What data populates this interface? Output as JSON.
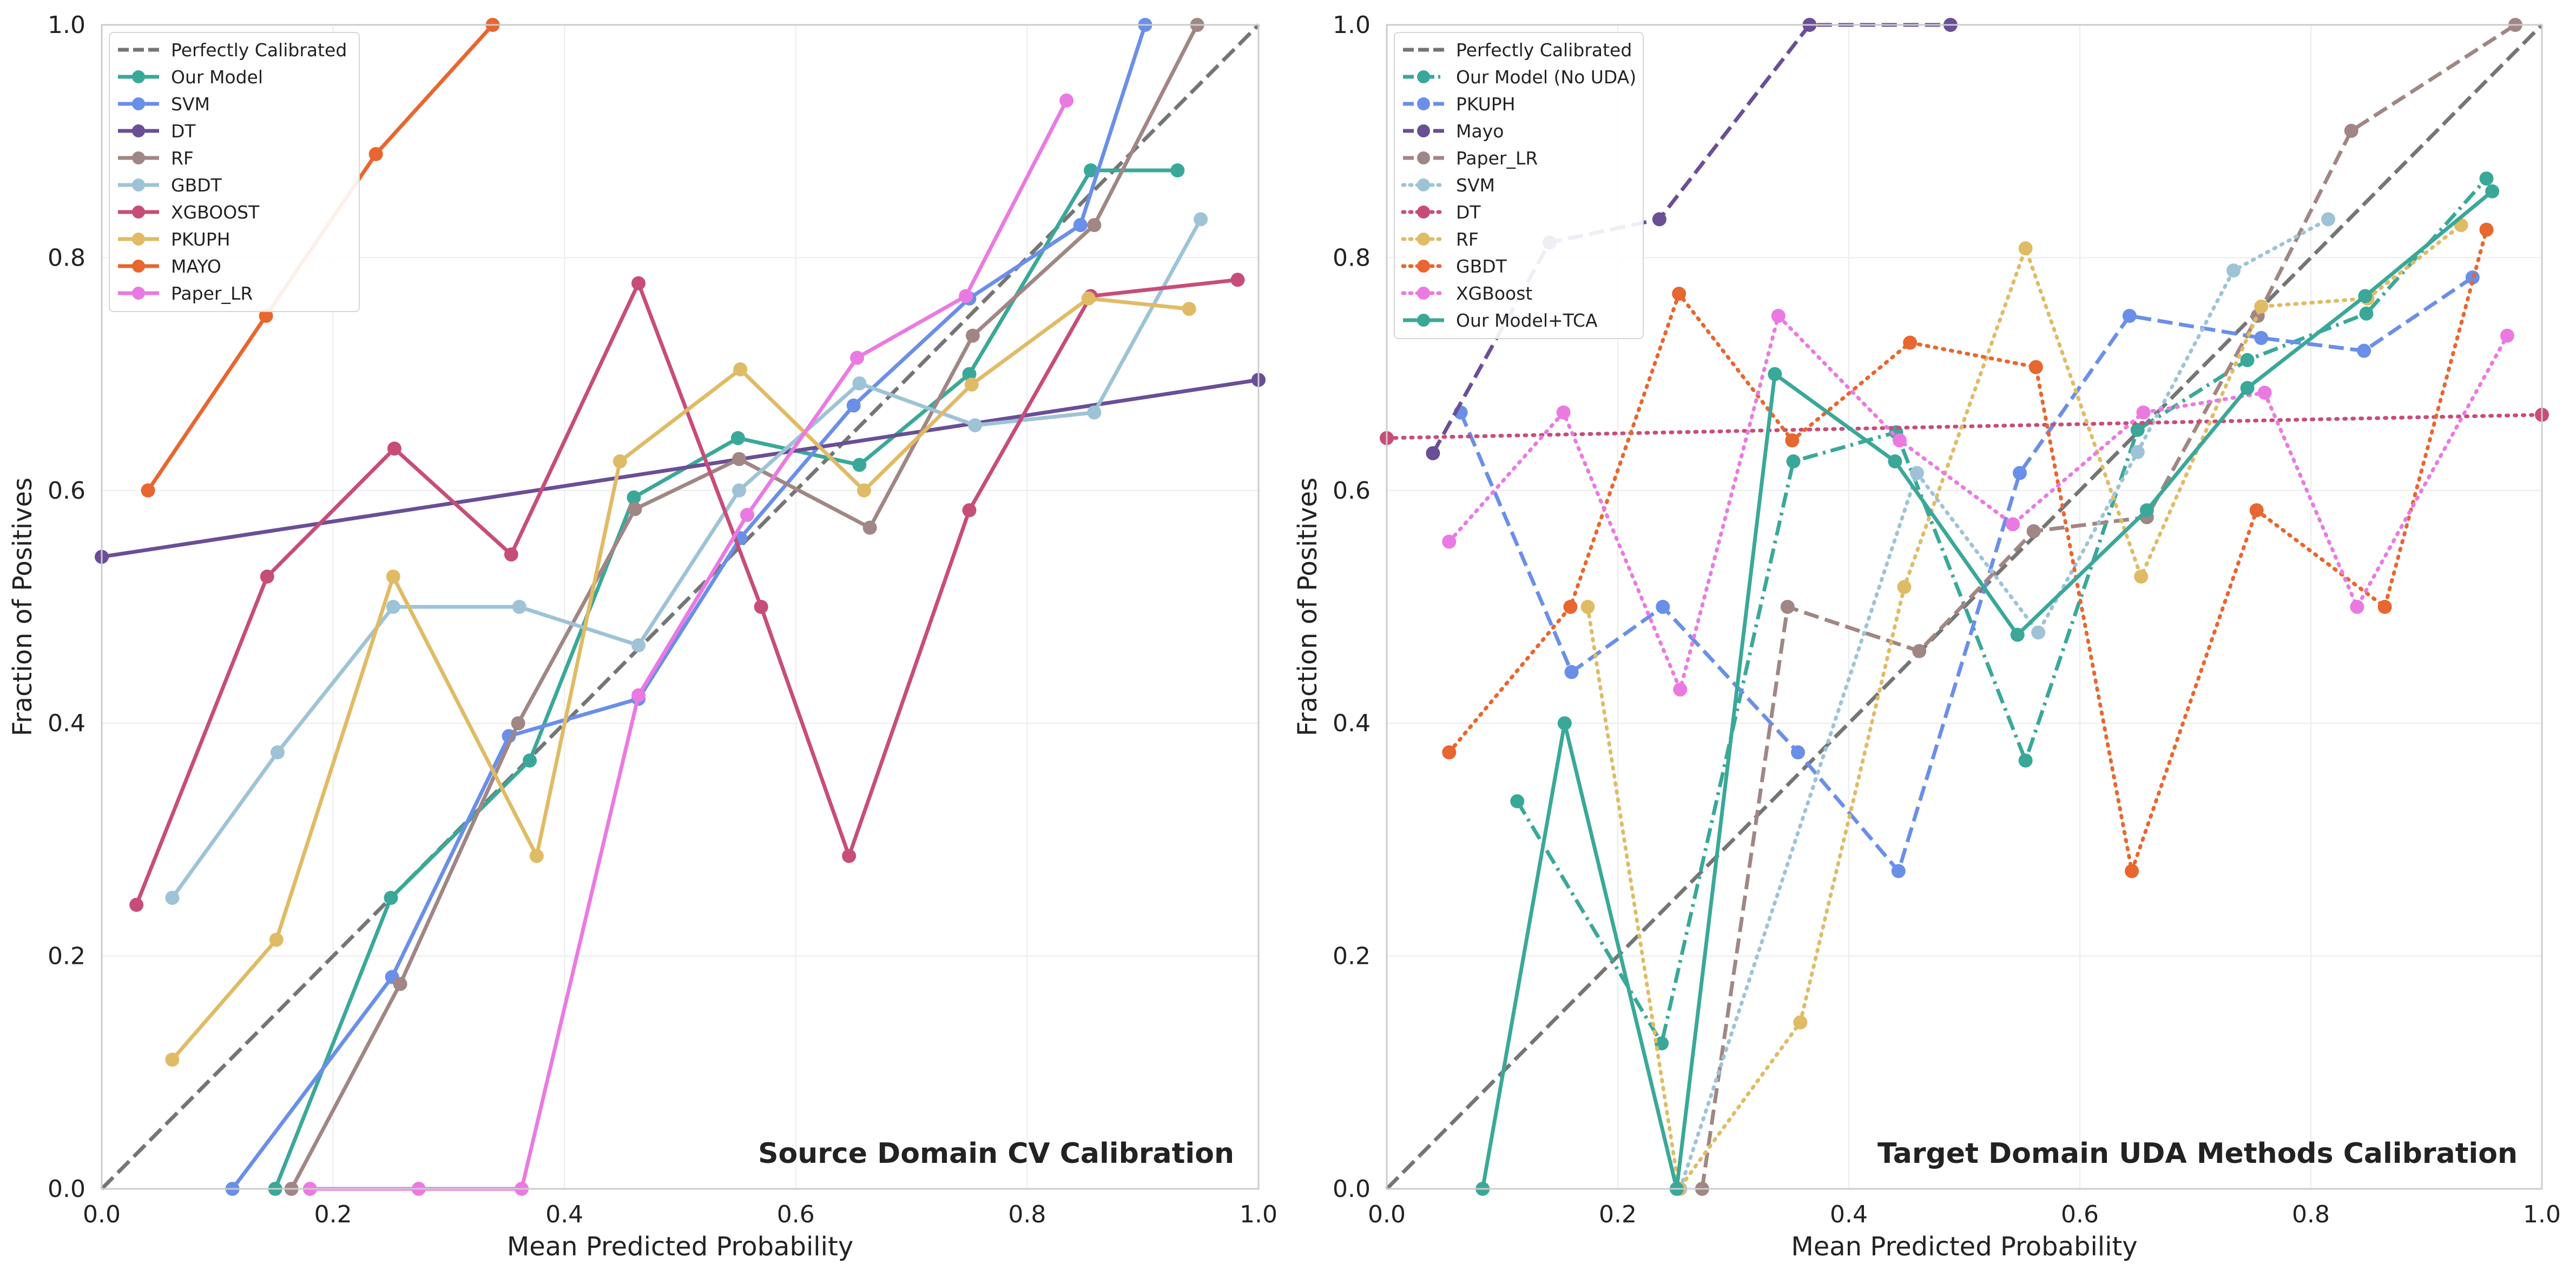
{
  "colors": {
    "teal": "#3aa899",
    "blue": "#6a8fe8",
    "purple": "#6a4e96",
    "taupe": "#a08684",
    "lightblue": "#9ec3d6",
    "crimson": "#c74d79",
    "gold": "#e0bb66",
    "orange": "#e8662f",
    "pink": "#ea7ae2",
    "diagonal": "#757575"
  },
  "chart_data": [
    {
      "type": "line",
      "title": "Source Domain CV Calibration",
      "xlabel": "Mean Predicted Probability",
      "ylabel": "Fraction of Positives",
      "xlim": [
        0,
        1
      ],
      "ylim": [
        0,
        1
      ],
      "xticks": [
        "0.0",
        "0.2",
        "0.4",
        "0.6",
        "0.8",
        "1.0"
      ],
      "yticks": [
        "0.0",
        "0.2",
        "0.4",
        "0.6",
        "0.8",
        "1.0"
      ],
      "grid": true,
      "legend_position": "top-left",
      "reference": {
        "name": "Perfectly Calibrated",
        "x": [
          0,
          1
        ],
        "y": [
          0,
          1
        ]
      },
      "series": [
        {
          "name": "Our Model",
          "color": "teal",
          "dash": "solid",
          "x": [
            0.15,
            0.25,
            0.37,
            0.46,
            0.55,
            0.655,
            0.75,
            0.855,
            0.93
          ],
          "y": [
            0.0,
            0.25,
            0.368,
            0.594,
            0.645,
            0.622,
            0.7,
            0.875,
            0.875
          ]
        },
        {
          "name": "SVM",
          "color": "blue",
          "dash": "solid",
          "x": [
            0.113,
            0.251,
            0.352,
            0.464,
            0.552,
            0.65,
            0.75,
            0.846,
            0.902
          ],
          "y": [
            0.0,
            0.182,
            0.389,
            0.421,
            0.559,
            0.673,
            0.765,
            0.828,
            1.0
          ]
        },
        {
          "name": "DT",
          "color": "purple",
          "dash": "solid",
          "x": [
            0.0,
            1.0
          ],
          "y": [
            0.543,
            0.695
          ]
        },
        {
          "name": "RF",
          "color": "taupe",
          "dash": "solid",
          "x": [
            0.164,
            0.258,
            0.36,
            0.461,
            0.551,
            0.664,
            0.753,
            0.858,
            0.947
          ],
          "y": [
            0.0,
            0.176,
            0.4,
            0.584,
            0.627,
            0.568,
            0.733,
            0.828,
            1.0
          ]
        },
        {
          "name": "GBDT",
          "color": "lightblue",
          "dash": "solid",
          "x": [
            0.061,
            0.152,
            0.252,
            0.361,
            0.464,
            0.551,
            0.655,
            0.755,
            0.858,
            0.95
          ],
          "y": [
            0.25,
            0.375,
            0.5,
            0.5,
            0.467,
            0.6,
            0.692,
            0.656,
            0.667,
            0.833
          ]
        },
        {
          "name": "XGBOOST",
          "color": "crimson",
          "dash": "solid",
          "x": [
            0.03,
            0.143,
            0.253,
            0.354,
            0.464,
            0.57,
            0.646,
            0.75,
            0.855,
            0.982
          ],
          "y": [
            0.244,
            0.526,
            0.636,
            0.545,
            0.778,
            0.5,
            0.286,
            0.583,
            0.767,
            0.781
          ]
        },
        {
          "name": "PKUPH",
          "color": "gold",
          "dash": "solid",
          "x": [
            0.061,
            0.151,
            0.252,
            0.376,
            0.448,
            0.552,
            0.659,
            0.752,
            0.853,
            0.94
          ],
          "y": [
            0.111,
            0.214,
            0.526,
            0.286,
            0.625,
            0.704,
            0.6,
            0.691,
            0.765,
            0.756
          ]
        },
        {
          "name": "MAYO",
          "color": "orange",
          "dash": "solid",
          "x": [
            0.04,
            0.142,
            0.237,
            0.338
          ],
          "y": [
            0.6,
            0.75,
            0.889,
            1.0
          ]
        },
        {
          "name": "Paper_LR",
          "color": "pink",
          "dash": "solid",
          "x": [
            0.18,
            0.274,
            0.363,
            0.464,
            0.558,
            0.653,
            0.747,
            0.834
          ],
          "y": [
            0.0,
            0.0,
            0.0,
            0.424,
            0.579,
            0.714,
            0.767,
            0.935
          ]
        }
      ]
    },
    {
      "type": "line",
      "title": "Target Domain UDA Methods Calibration",
      "xlabel": "Mean Predicted Probability",
      "ylabel": "Fraction of Positives",
      "xlim": [
        0,
        1
      ],
      "ylim": [
        0,
        1
      ],
      "xticks": [
        "0.0",
        "0.2",
        "0.4",
        "0.6",
        "0.8",
        "1.0"
      ],
      "yticks": [
        "0.0",
        "0.2",
        "0.4",
        "0.6",
        "0.8",
        "1.0"
      ],
      "grid": true,
      "legend_position": "top-left",
      "reference": {
        "name": "Perfectly Calibrated",
        "x": [
          0,
          1
        ],
        "y": [
          0,
          1
        ]
      },
      "series": [
        {
          "name": "Our Model (No UDA)",
          "color": "teal",
          "dash": "dashdot",
          "x": [
            0.113,
            0.238,
            0.352,
            0.441,
            0.553,
            0.65,
            0.745,
            0.848,
            0.952
          ],
          "y": [
            0.333,
            0.125,
            0.625,
            0.65,
            0.368,
            0.652,
            0.712,
            0.752,
            0.868
          ]
        },
        {
          "name": "PKUPH",
          "color": "blue",
          "dash": "dashed",
          "x": [
            0.064,
            0.16,
            0.239,
            0.356,
            0.443,
            0.548,
            0.643,
            0.757,
            0.846,
            0.94
          ],
          "y": [
            0.667,
            0.444,
            0.5,
            0.375,
            0.273,
            0.615,
            0.75,
            0.731,
            0.72,
            0.783
          ]
        },
        {
          "name": "Mayo",
          "color": "purple",
          "dash": "dashed",
          "x": [
            0.04,
            0.141,
            0.236,
            0.366,
            0.488
          ],
          "y": [
            0.632,
            0.813,
            0.833,
            1.0,
            1.0
          ]
        },
        {
          "name": "Paper_LR",
          "color": "taupe",
          "dash": "dashed",
          "x": [
            0.273,
            0.347,
            0.461,
            0.56,
            0.658,
            0.754,
            0.835,
            0.977
          ],
          "y": [
            0.0,
            0.5,
            0.462,
            0.565,
            0.577,
            0.75,
            0.909,
            1.0
          ]
        },
        {
          "name": "SVM",
          "color": "lightblue",
          "dash": "dotted",
          "x": [
            0.254,
            0.459,
            0.564,
            0.65,
            0.733,
            0.815
          ],
          "y": [
            0.0,
            0.615,
            0.478,
            0.633,
            0.789,
            0.833
          ]
        },
        {
          "name": "DT",
          "color": "crimson",
          "dash": "dotted",
          "x": [
            0.0,
            1.0
          ],
          "y": [
            0.645,
            0.665
          ]
        },
        {
          "name": "RF",
          "color": "gold",
          "dash": "dotted",
          "x": [
            0.174,
            0.253,
            0.358,
            0.448,
            0.553,
            0.653,
            0.757,
            0.849,
            0.93
          ],
          "y": [
            0.5,
            0.0,
            0.143,
            0.517,
            0.808,
            0.526,
            0.758,
            0.765,
            0.828
          ]
        },
        {
          "name": "GBDT",
          "color": "orange",
          "dash": "dotted",
          "x": [
            0.054,
            0.159,
            0.253,
            0.351,
            0.453,
            0.562,
            0.645,
            0.753,
            0.864,
            0.952
          ],
          "y": [
            0.375,
            0.5,
            0.769,
            0.643,
            0.727,
            0.706,
            0.273,
            0.583,
            0.5,
            0.824
          ]
        },
        {
          "name": "XGBoost",
          "color": "pink",
          "dash": "dotted",
          "x": [
            0.054,
            0.153,
            0.254,
            0.339,
            0.444,
            0.542,
            0.655,
            0.76,
            0.84,
            0.97
          ],
          "y": [
            0.556,
            0.667,
            0.429,
            0.75,
            0.643,
            0.571,
            0.667,
            0.684,
            0.5,
            0.733
          ]
        },
        {
          "name": "Our Model+TCA",
          "color": "teal",
          "dash": "solid",
          "x": [
            0.083,
            0.154,
            0.251,
            0.336,
            0.44,
            0.546,
            0.658,
            0.745,
            0.847,
            0.957
          ],
          "y": [
            0.0,
            0.4,
            0.0,
            0.7,
            0.625,
            0.476,
            0.583,
            0.688,
            0.767,
            0.857
          ]
        }
      ]
    }
  ]
}
